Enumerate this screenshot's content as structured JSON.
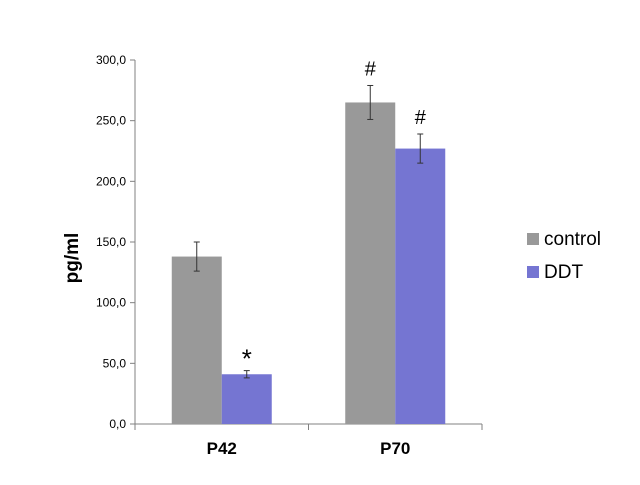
{
  "chart_data": {
    "type": "bar",
    "title": "",
    "xlabel": "",
    "ylabel": "pg/ml",
    "ylim": [
      0,
      300
    ],
    "yticks": [
      0,
      50,
      100,
      150,
      200,
      250,
      300
    ],
    "ytick_labels": [
      "0,0",
      "50,0",
      "100,0",
      "150,0",
      "200,0",
      "250,0",
      "300,0"
    ],
    "categories": [
      "P42",
      "P70"
    ],
    "grid": false,
    "legend_position": "right",
    "series": [
      {
        "name": "control",
        "color": "#999999",
        "values": [
          138,
          265
        ],
        "errors": [
          12,
          14
        ],
        "annotations": [
          "",
          "#"
        ]
      },
      {
        "name": "DDT",
        "color": "#7575d2",
        "values": [
          41,
          227
        ],
        "errors": [
          3,
          12
        ],
        "annotations": [
          "*",
          "#"
        ]
      }
    ]
  }
}
